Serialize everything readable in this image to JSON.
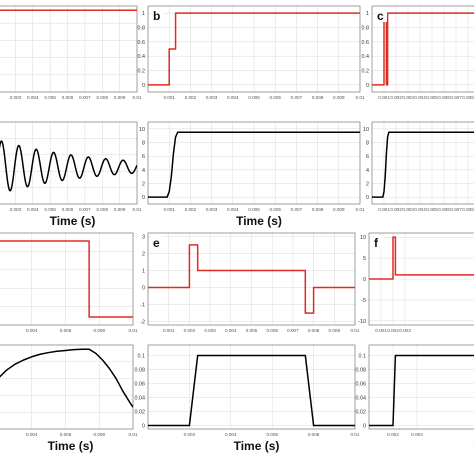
{
  "colors": {
    "red": "#e02b20",
    "black": "#000000",
    "grid": "#d9d9d9",
    "frame": "#888888",
    "labelbg": "#ffffff"
  },
  "chart_data": [
    {
      "id": "a-top",
      "type": "line",
      "panel_label": "",
      "color": "red",
      "xlim": [
        0.002,
        0.01
      ],
      "ylim": [
        0,
        1
      ],
      "x_ticks": [
        {
          "v": 0.003,
          "t": "0.003"
        },
        {
          "v": 0.004,
          "t": "0.004"
        },
        {
          "v": 0.005,
          "t": "0.005"
        },
        {
          "v": 0.006,
          "t": "0.006"
        },
        {
          "v": 0.007,
          "t": "0.007"
        },
        {
          "v": 0.008,
          "t": "0.008"
        },
        {
          "v": 0.009,
          "t": "0.009"
        },
        {
          "v": 0.01,
          "t": "0.01"
        }
      ],
      "y_ticks": [],
      "xlabel": "",
      "ylabel": "",
      "series": [
        {
          "x": [
            0.002,
            0.01
          ],
          "y": [
            0.95,
            0.95
          ]
        }
      ]
    },
    {
      "id": "a-bottom",
      "type": "line",
      "panel_label": "",
      "color": "black",
      "xlim": [
        0.002,
        0.01
      ],
      "ylim": [
        0,
        1
      ],
      "x_ticks": [
        {
          "v": 0.003,
          "t": "0.003"
        },
        {
          "v": 0.004,
          "t": "0.004"
        },
        {
          "v": 0.005,
          "t": "0.005"
        },
        {
          "v": 0.006,
          "t": "0.006"
        },
        {
          "v": 0.007,
          "t": "0.007"
        },
        {
          "v": 0.008,
          "t": "0.008"
        },
        {
          "v": 0.009,
          "t": "0.009"
        },
        {
          "v": 0.01,
          "t": "0.01"
        }
      ],
      "y_ticks": [],
      "xlabel": "Time (s)",
      "ylabel": "",
      "generator": {
        "kind": "damped_sine",
        "x_start": 0.002,
        "x_end": 0.01,
        "mean": 0.45,
        "amp0": 0.33,
        "decay": 190,
        "freq": 1000
      }
    },
    {
      "id": "b-top",
      "type": "line",
      "panel_label": "b",
      "color": "red",
      "xlim": [
        0,
        0.01
      ],
      "ylim": [
        -0.1,
        1.1
      ],
      "x_ticks": [
        {
          "v": 0.001,
          "t": "0.001"
        },
        {
          "v": 0.002,
          "t": "0.002"
        },
        {
          "v": 0.003,
          "t": "0.003"
        },
        {
          "v": 0.004,
          "t": "0.004"
        },
        {
          "v": 0.005,
          "t": "0.005"
        },
        {
          "v": 0.006,
          "t": "0.006"
        },
        {
          "v": 0.007,
          "t": "0.007"
        },
        {
          "v": 0.008,
          "t": "0.008"
        },
        {
          "v": 0.009,
          "t": "0.009"
        },
        {
          "v": 0.01,
          "t": "0.01"
        }
      ],
      "y_ticks": [
        {
          "v": 0,
          "t": "0"
        },
        {
          "v": 0.2,
          "t": "0.2"
        },
        {
          "v": 0.4,
          "t": "0.4"
        },
        {
          "v": 0.6,
          "t": "0.6"
        },
        {
          "v": 0.8,
          "t": "0.8"
        },
        {
          "v": 1,
          "t": "1"
        }
      ],
      "xlabel": "",
      "ylabel": "",
      "series": [
        {
          "x": [
            0,
            0.001,
            0.001,
            0.0013,
            0.0013,
            0.01
          ],
          "y": [
            0,
            0,
            0.5,
            0.5,
            1,
            1
          ]
        }
      ]
    },
    {
      "id": "b-bottom",
      "type": "line",
      "panel_label": "",
      "color": "black",
      "xlim": [
        0,
        0.01
      ],
      "ylim": [
        -1,
        11
      ],
      "x_ticks": [
        {
          "v": 0.001,
          "t": "0.001"
        },
        {
          "v": 0.002,
          "t": "0.002"
        },
        {
          "v": 0.003,
          "t": "0.003"
        },
        {
          "v": 0.004,
          "t": "0.004"
        },
        {
          "v": 0.005,
          "t": "0.005"
        },
        {
          "v": 0.006,
          "t": "0.006"
        },
        {
          "v": 0.007,
          "t": "0.007"
        },
        {
          "v": 0.008,
          "t": "0.008"
        },
        {
          "v": 0.009,
          "t": "0.009"
        },
        {
          "v": 0.01,
          "t": "0.01"
        }
      ],
      "y_ticks": [
        {
          "v": 0,
          "t": "0"
        },
        {
          "v": 2,
          "t": "2"
        },
        {
          "v": 4,
          "t": "4"
        },
        {
          "v": 6,
          "t": "6"
        },
        {
          "v": 8,
          "t": "8"
        },
        {
          "v": 10,
          "t": "10"
        }
      ],
      "xlabel": "Time (s)",
      "ylabel": "",
      "series": [
        {
          "x": [
            0,
            0.0009,
            0.001,
            0.0011,
            0.0012,
            0.0013,
            0.0014,
            0.01
          ],
          "y": [
            0,
            0,
            0.8,
            3,
            6.4,
            8.8,
            9.5,
            9.5
          ]
        }
      ]
    },
    {
      "id": "c-top",
      "type": "line",
      "panel_label": "c",
      "color": "red",
      "xlim": [
        0,
        0.01
      ],
      "ylim": [
        -0.1,
        1.1
      ],
      "x_ticks": [
        {
          "v": 0.001,
          "t": "0.001"
        },
        {
          "v": 0.002,
          "t": "0.002"
        },
        {
          "v": 0.003,
          "t": "0.003"
        },
        {
          "v": 0.004,
          "t": "0.004"
        },
        {
          "v": 0.005,
          "t": "0.005"
        },
        {
          "v": 0.006,
          "t": "0.006"
        },
        {
          "v": 0.007,
          "t": "0.007"
        },
        {
          "v": 0.008,
          "t": "0.008"
        },
        {
          "v": 0.009,
          "t": "0.009"
        },
        {
          "v": 0.01,
          "t": "0.01"
        }
      ],
      "y_ticks": [
        {
          "v": 0,
          "t": "0"
        },
        {
          "v": 0.2,
          "t": "0.2"
        },
        {
          "v": 0.4,
          "t": "0.4"
        },
        {
          "v": 0.6,
          "t": "0.6"
        },
        {
          "v": 0.8,
          "t": "0.8"
        },
        {
          "v": 1,
          "t": "1"
        }
      ],
      "xlabel": "",
      "ylabel": "",
      "series": [
        {
          "x": [
            0,
            0.001,
            0.001,
            0.0012,
            0.0012,
            0.0013,
            0.0013,
            0.0015,
            0.0015,
            0.01
          ],
          "y": [
            0,
            0,
            1,
            1,
            0,
            0,
            1,
            1,
            1,
            1
          ]
        }
      ]
    },
    {
      "id": "c-bottom",
      "type": "line",
      "panel_label": "",
      "color": "black",
      "xlim": [
        0,
        0.01
      ],
      "ylim": [
        -1,
        11
      ],
      "x_ticks": [
        {
          "v": 0.001,
          "t": "0.001"
        },
        {
          "v": 0.002,
          "t": "0.002"
        },
        {
          "v": 0.003,
          "t": "0.003"
        },
        {
          "v": 0.004,
          "t": "0.004"
        },
        {
          "v": 0.005,
          "t": "0.005"
        },
        {
          "v": 0.006,
          "t": "0.006"
        },
        {
          "v": 0.007,
          "t": "0.007"
        },
        {
          "v": 0.008,
          "t": "0.008"
        },
        {
          "v": 0.009,
          "t": "0.009"
        },
        {
          "v": 0.01,
          "t": "0.01"
        }
      ],
      "y_ticks": [
        {
          "v": 0,
          "t": "0"
        },
        {
          "v": 2,
          "t": "2"
        },
        {
          "v": 4,
          "t": "4"
        },
        {
          "v": 6,
          "t": "6"
        },
        {
          "v": 8,
          "t": "8"
        },
        {
          "v": 10,
          "t": "10"
        }
      ],
      "xlabel": "Ti",
      "ylabel": "",
      "series": [
        {
          "x": [
            0,
            0.0009,
            0.001,
            0.0011,
            0.0012,
            0.0013,
            0.0014,
            0.01
          ],
          "y": [
            0,
            0,
            0.8,
            3,
            6.4,
            8.8,
            9.5,
            9.5
          ]
        }
      ]
    },
    {
      "id": "d-top",
      "type": "line",
      "panel_label": "",
      "color": "red",
      "xlim": [
        0.002,
        0.01
      ],
      "ylim": [
        -0.1,
        1.05
      ],
      "x_ticks": [
        {
          "v": 0.004,
          "t": "0.004"
        },
        {
          "v": 0.006,
          "t": "0.006"
        },
        {
          "v": 0.008,
          "t": "0.008"
        },
        {
          "v": 0.01,
          "t": "0.01"
        }
      ],
      "y_ticks": [],
      "xlabel": "",
      "ylabel": "",
      "series": [
        {
          "x": [
            0.002,
            0.0074,
            0.0074,
            0.01
          ],
          "y": [
            0.95,
            0.95,
            0,
            0
          ]
        }
      ]
    },
    {
      "id": "d-bottom",
      "type": "line",
      "panel_label": "",
      "color": "black",
      "xlim": [
        0.002,
        0.01
      ],
      "ylim": [
        0,
        1
      ],
      "x_ticks": [
        {
          "v": 0.004,
          "t": "0.004"
        },
        {
          "v": 0.006,
          "t": "0.006"
        },
        {
          "v": 0.008,
          "t": "0.008"
        },
        {
          "v": 0.01,
          "t": "0.01"
        }
      ],
      "y_ticks": [],
      "xlabel": "Time (s)",
      "ylabel": "",
      "series": [
        {
          "x": [
            0.002,
            0.0025,
            0.003,
            0.0035,
            0.004,
            0.0045,
            0.005,
            0.0055,
            0.006,
            0.0065,
            0.007,
            0.0074,
            0.0078,
            0.0082,
            0.0086,
            0.009,
            0.0094,
            0.0098,
            0.01
          ],
          "y": [
            0.6,
            0.7,
            0.77,
            0.82,
            0.86,
            0.89,
            0.91,
            0.925,
            0.935,
            0.945,
            0.95,
            0.95,
            0.9,
            0.82,
            0.72,
            0.6,
            0.45,
            0.32,
            0.26
          ]
        }
      ]
    },
    {
      "id": "e-top",
      "type": "line",
      "panel_label": "e",
      "color": "red",
      "xlim": [
        0,
        0.01
      ],
      "ylim": [
        -2.2,
        3.2
      ],
      "x_ticks": [
        {
          "v": 0.001,
          "t": "0.001"
        },
        {
          "v": 0.002,
          "t": "0.002"
        },
        {
          "v": 0.003,
          "t": "0.003"
        },
        {
          "v": 0.004,
          "t": "0.004"
        },
        {
          "v": 0.005,
          "t": "0.005"
        },
        {
          "v": 0.006,
          "t": "0.006"
        },
        {
          "v": 0.007,
          "t": "0.007"
        },
        {
          "v": 0.008,
          "t": "0.008"
        },
        {
          "v": 0.009,
          "t": "0.009"
        },
        {
          "v": 0.01,
          "t": "0.01"
        }
      ],
      "y_ticks": [
        {
          "v": -2,
          "t": "-2"
        },
        {
          "v": -1,
          "t": "-1"
        },
        {
          "v": 0,
          "t": "0"
        },
        {
          "v": 1,
          "t": "1"
        },
        {
          "v": 2,
          "t": "2"
        },
        {
          "v": 3,
          "t": "3"
        }
      ],
      "xlabel": "",
      "ylabel": "",
      "series": [
        {
          "x": [
            0,
            0.002,
            0.002,
            0.0024,
            0.0024,
            0.0076,
            0.0076,
            0.008,
            0.008,
            0.01
          ],
          "y": [
            0,
            0,
            2.5,
            2.5,
            1,
            1,
            -1.5,
            -1.5,
            0,
            0
          ]
        }
      ]
    },
    {
      "id": "e-bottom",
      "type": "line",
      "panel_label": "",
      "color": "black",
      "xlim": [
        0,
        0.01
      ],
      "ylim": [
        -0.005,
        0.115
      ],
      "x_ticks": [
        {
          "v": 0.002,
          "t": "0.002"
        },
        {
          "v": 0.004,
          "t": "0.004"
        },
        {
          "v": 0.006,
          "t": "0.006"
        },
        {
          "v": 0.008,
          "t": "0.008"
        },
        {
          "v": 0.01,
          "t": "0.01"
        }
      ],
      "y_ticks": [
        {
          "v": 0,
          "t": "0"
        },
        {
          "v": 0.02,
          "t": "0.02"
        },
        {
          "v": 0.04,
          "t": "0.04"
        },
        {
          "v": 0.06,
          "t": "0.06"
        },
        {
          "v": 0.08,
          "t": "0.08"
        },
        {
          "v": 0.1,
          "t": "0.1"
        }
      ],
      "xlabel": "Time (s)",
      "ylabel": "",
      "series": [
        {
          "x": [
            0,
            0.002,
            0.0024,
            0.0076,
            0.008,
            0.01
          ],
          "y": [
            0,
            0,
            0.1,
            0.1,
            0,
            0
          ]
        }
      ]
    },
    {
      "id": "f-top",
      "type": "line",
      "panel_label": "f",
      "color": "red",
      "xlim": [
        0,
        0.01
      ],
      "ylim": [
        -11,
        11
      ],
      "x_ticks": [
        {
          "v": 0.001,
          "t": "0.001"
        },
        {
          "v": 0.002,
          "t": "0.002"
        },
        {
          "v": 0.003,
          "t": "0.003"
        }
      ],
      "y_ticks": [
        {
          "v": -10,
          "t": "-10"
        },
        {
          "v": -5,
          "t": "-5"
        },
        {
          "v": 0,
          "t": "0"
        },
        {
          "v": 5,
          "t": "5"
        },
        {
          "v": 10,
          "t": "10"
        }
      ],
      "xlabel": "",
      "ylabel": "",
      "series": [
        {
          "x": [
            0,
            0.002,
            0.002,
            0.0022,
            0.0022,
            0.01
          ],
          "y": [
            0,
            0,
            10,
            10,
            1,
            1
          ]
        }
      ]
    },
    {
      "id": "f-bottom",
      "type": "line",
      "panel_label": "",
      "color": "black",
      "xlim": [
        0,
        0.01
      ],
      "ylim": [
        -0.005,
        0.115
      ],
      "x_ticks": [
        {
          "v": 0.002,
          "t": "0.002"
        },
        {
          "v": 0.004,
          "t": "0.004"
        }
      ],
      "y_ticks": [
        {
          "v": 0,
          "t": "0"
        },
        {
          "v": 0.02,
          "t": "0.02"
        },
        {
          "v": 0.04,
          "t": "0.04"
        },
        {
          "v": 0.06,
          "t": "0.06"
        },
        {
          "v": 0.08,
          "t": "0.08"
        },
        {
          "v": 0.1,
          "t": "0.1"
        }
      ],
      "xlabel": "Ti",
      "ylabel": "",
      "series": [
        {
          "x": [
            0,
            0.002,
            0.0022,
            0.01
          ],
          "y": [
            0,
            0,
            0.1,
            0.1
          ]
        }
      ]
    }
  ]
}
